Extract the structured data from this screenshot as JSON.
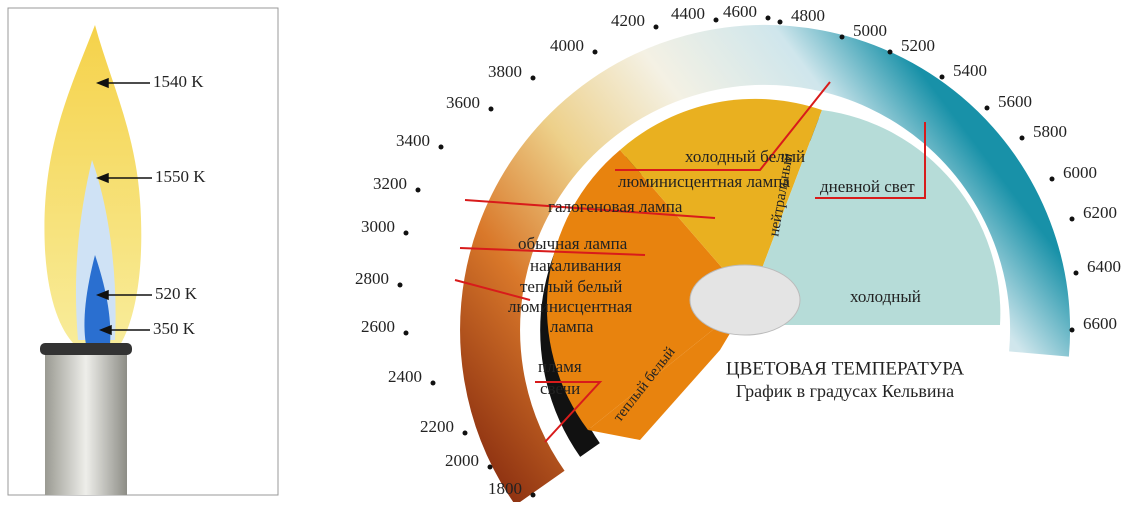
{
  "flame": {
    "labels": [
      "1540 K",
      "1550 K",
      "520 K",
      "350 K"
    ]
  },
  "scale": {
    "ticks": [
      "1800",
      "2000",
      "2200",
      "2400",
      "2600",
      "2800",
      "3000",
      "3200",
      "3400",
      "3600",
      "3800",
      "4000",
      "4200",
      "4400",
      "4600",
      "4800",
      "5000",
      "5200",
      "5400",
      "5600",
      "5800",
      "6000",
      "6200",
      "6400",
      "6600"
    ]
  },
  "regions": {
    "cool_white": [
      "холодный белый",
      "люминисцентная лампа"
    ],
    "halogen": "галогеновая лампа",
    "incandescent": [
      "обычная лампа",
      "накаливания"
    ],
    "warm_white_fluorescent": [
      "теплый белый",
      "люминисцентная",
      "лампа"
    ],
    "candle": [
      "пламя",
      "свечи"
    ],
    "warm_white": "теплый белый",
    "neutral": "нейтральный",
    "daylight": "дневной свет",
    "cold": "холодный"
  },
  "title": "ЦВЕТОВАЯ ТЕМПЕРАТУРА",
  "subtitle": "График в градусах Кельвина"
}
